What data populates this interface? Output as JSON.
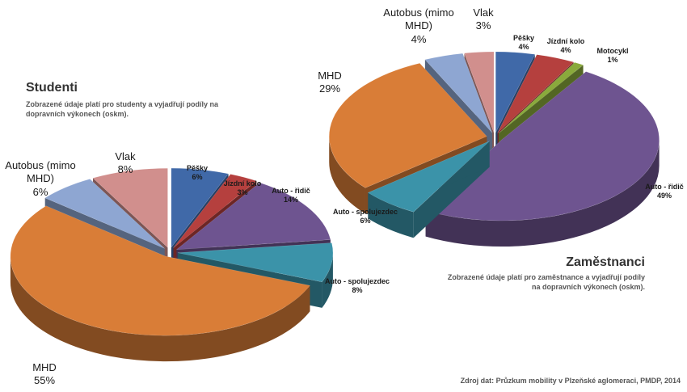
{
  "chart_data": [
    {
      "type": "pie",
      "title": "Studenti",
      "subtitle": "Zobrazené údaje platí pro studenty a vyjadřují podíly na dopravních výkonech (oskm).",
      "categories": [
        "Pěšky",
        "Jízdní kolo",
        "Auto - řidič",
        "Auto - spolujezdec",
        "MHD",
        "Autobus (mimo MHD)",
        "Vlak"
      ],
      "values": [
        6,
        3,
        14,
        8,
        55,
        6,
        8
      ],
      "value_labels": [
        "6%",
        "3%",
        "14%",
        "8%",
        "55%",
        "6%",
        "8%"
      ],
      "colors": [
        "#4069a8",
        "#b5403e",
        "#6e5490",
        "#3b93a9",
        "#d97d37",
        "#8ea6d2",
        "#d18f8d"
      ]
    },
    {
      "type": "pie",
      "title": "Zaměstnanci",
      "subtitle": "Zobrazené údaje platí pro zaměstnance a vyjadřují podíly na dopravních výkonech (oskm).",
      "categories": [
        "Pěšky",
        "Jízdní kolo",
        "Motocykl",
        "Auto - řidič",
        "Auto - spolujezdec",
        "MHD",
        "Autobus (mimo MHD)",
        "Vlak"
      ],
      "values": [
        4,
        4,
        1,
        49,
        6,
        29,
        4,
        3
      ],
      "value_labels": [
        "4%",
        "4%",
        "1%",
        "49%",
        "6%",
        "29%",
        "4%",
        "3%"
      ],
      "colors": [
        "#4069a8",
        "#b5403e",
        "#8aaa3c",
        "#6e5490",
        "#3b93a9",
        "#d97d37",
        "#8ea6d2",
        "#d18f8d"
      ]
    }
  ],
  "source": "Zdroj dat: Průzkum mobility v Plzeňské aglomeraci, PMDP, 2014"
}
